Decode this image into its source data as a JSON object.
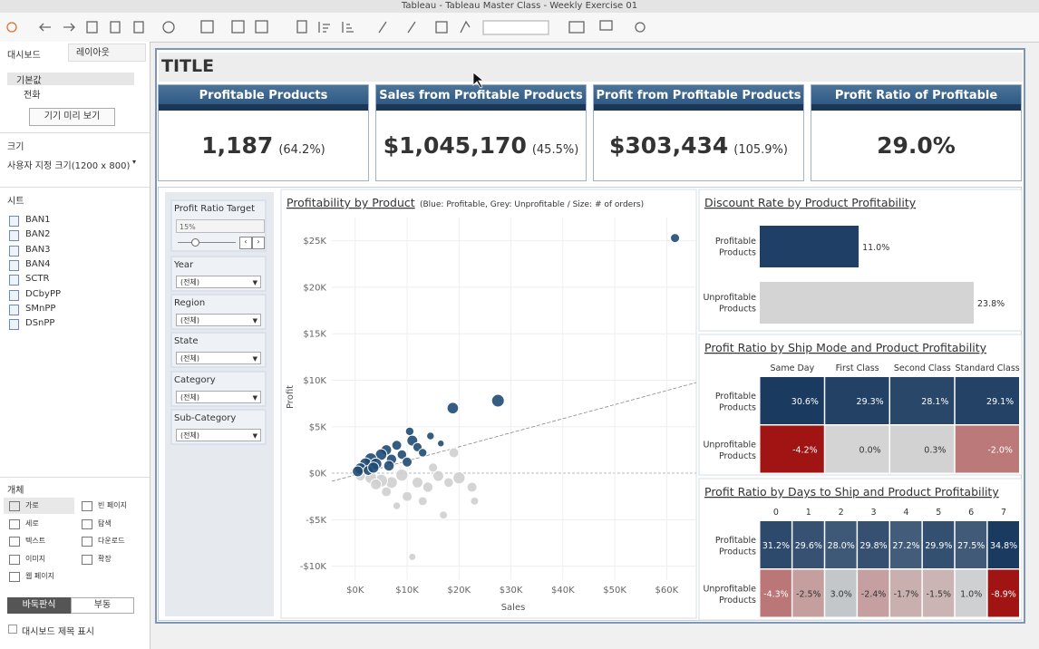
{
  "window_title": "Tableau - Tableau Master Class - Weekly Exercise 01",
  "sidebar": {
    "tabs": [
      "대시보드",
      "레이아웃"
    ],
    "devices": [
      "기본값",
      "전화"
    ],
    "preview_button": "기기 미리 보기",
    "size_heading": "크기",
    "size_value": "사용자 지정 크기(1200 x 800)",
    "sheets_heading": "시트",
    "sheets": [
      "BAN1",
      "BAN2",
      "BAN3",
      "BAN4",
      "SCTR",
      "DCbyPP",
      "SMnPP",
      "DSnPP"
    ],
    "objects_heading": "개체",
    "objects": [
      "가로",
      "빈 페이지",
      "세로",
      "탐색",
      "텍스트",
      "다운로드",
      "이미지",
      "확장",
      "웹 페이지"
    ],
    "layout_buttons": [
      "바둑판식",
      "부동"
    ],
    "show_title": "대시보드 제목 표시"
  },
  "dashboard": {
    "title": "TITLE",
    "kpis": [
      {
        "label": "Profitable Products",
        "value": "1,187",
        "ratio": "(64.2%)"
      },
      {
        "label": "Sales from Profitable Products",
        "value": "$1,045,170",
        "ratio": "(45.5%)"
      },
      {
        "label": "Profit from Profitable Products",
        "value": "$303,434",
        "ratio": "(105.9%)"
      },
      {
        "label": "Profit Ratio of Profitable Products",
        "value": "29.0%"
      }
    ],
    "filters": {
      "target_label": "Profit Ratio Target",
      "target_value": "15%",
      "items": [
        {
          "label": "Year",
          "value": "(전체)"
        },
        {
          "label": "Region",
          "value": "(전체)"
        },
        {
          "label": "State",
          "value": "(전체)"
        },
        {
          "label": "Category",
          "value": "(전체)"
        },
        {
          "label": "Sub-Category",
          "value": "(전체)"
        }
      ]
    }
  },
  "chart_data": [
    {
      "type": "scatter",
      "title": "Profitability by Product",
      "subtitle": "(Blue: Profitable, Grey: Unprofitable / Size: # of orders)",
      "x_label": "Sales",
      "y_label": "Profit",
      "xlim": [
        -4.5,
        65.7
      ],
      "ylim": [
        -11.5,
        27.5
      ],
      "xticks": [
        {
          "value": 0,
          "label": "$0K"
        },
        {
          "value": 10,
          "label": "$10K"
        },
        {
          "value": 20,
          "label": "$20K"
        },
        {
          "value": 30,
          "label": "$30K"
        },
        {
          "value": 40,
          "label": "$40K"
        },
        {
          "value": 50,
          "label": "$50K"
        },
        {
          "value": 60,
          "label": "$60K"
        }
      ],
      "yticks": [
        {
          "value": -10,
          "label": "-$10K"
        },
        {
          "value": -5,
          "label": "-$5K"
        },
        {
          "value": 0,
          "label": "$0K"
        },
        {
          "value": 5,
          "label": "$5K"
        },
        {
          "value": 10,
          "label": "$10K"
        },
        {
          "value": 15,
          "label": "$15K"
        },
        {
          "value": 20,
          "label": "$20K"
        },
        {
          "value": 25,
          "label": "$25K"
        }
      ],
      "grid": true,
      "series": [
        {
          "color": "#1f4a73",
          "x": [
            61.6,
            27.5,
            18.8,
            10.5,
            14.5,
            16.5,
            11.0,
            8.0,
            6.0,
            5.0,
            3.0,
            2.0,
            1.0,
            0.5,
            4.0,
            7.0,
            9.0,
            12.0,
            13.0,
            10.0,
            2.5,
            6.5,
            3.5
          ],
          "values": [
            25.3,
            7.8,
            7.0,
            4.5,
            4.0,
            3.2,
            3.5,
            3.0,
            2.5,
            2.0,
            1.5,
            1.0,
            0.5,
            0.2,
            1.0,
            1.5,
            2.0,
            2.8,
            2.2,
            1.2,
            0.3,
            0.8,
            0.6
          ],
          "sizes": [
            25,
            49,
            40,
            22,
            18,
            14,
            36,
            30,
            34,
            40,
            49,
            45,
            40,
            36,
            42,
            32,
            28,
            26,
            22,
            30,
            30,
            34,
            38
          ]
        },
        {
          "color": "#cfcfcf",
          "x": [
            19.0,
            20.0,
            22.5,
            23.0,
            17.0,
            11.0,
            12.0,
            8.0,
            7.0,
            5.0,
            3.0,
            14.0,
            16.0,
            9.0,
            1.0,
            6.0,
            13.0,
            10.0,
            18.0,
            4.0,
            15.0
          ],
          "values": [
            2.2,
            -0.5,
            -1.5,
            -3.0,
            -4.5,
            -9.0,
            -1.0,
            -3.5,
            -1.0,
            -0.8,
            -0.5,
            -1.5,
            -0.3,
            -0.2,
            -0.3,
            -2.0,
            -3.0,
            -2.5,
            -1.0,
            -1.2,
            0.6
          ],
          "sizes": [
            30,
            45,
            30,
            20,
            20,
            16,
            36,
            18,
            42,
            50,
            42,
            32,
            36,
            45,
            30,
            30,
            25,
            30,
            28,
            36,
            26
          ]
        }
      ]
    },
    {
      "type": "bar",
      "orientation": "horizontal",
      "title": "Discount Rate by Product Profitability",
      "categories": [
        "Profitable Products",
        "Unprofitable Products"
      ],
      "values": [
        11.0,
        23.8
      ],
      "value_labels": [
        "11.0%",
        "23.8%"
      ],
      "colors": [
        "#1f3f66",
        "#d4d4d4"
      ]
    },
    {
      "type": "heatmap",
      "title": "Profit Ratio by Ship Mode and Product Profitability",
      "columns": [
        "Same Day",
        "First Class",
        "Second Class",
        "Standard Class"
      ],
      "rows": [
        "Profitable Products",
        "Unprofitable Products"
      ],
      "values": [
        [
          30.6,
          29.3,
          28.1,
          29.1
        ],
        [
          -4.2,
          0.0,
          0.3,
          -2.0
        ]
      ],
      "value_labels": [
        [
          "30.6%",
          "29.3%",
          "28.1%",
          "29.1%"
        ],
        [
          "-4.2%",
          "0.0%",
          "0.3%",
          "-2.0%"
        ]
      ]
    },
    {
      "type": "heatmap",
      "title": "Profit Ratio by Days to Ship and Product Profitability",
      "columns": [
        0,
        1,
        2,
        3,
        4,
        5,
        6,
        7
      ],
      "rows": [
        "Profitable Products",
        "Unprofitable Products"
      ],
      "values": [
        [
          31.2,
          29.6,
          28.0,
          29.8,
          27.2,
          29.9,
          27.5,
          34.8
        ],
        [
          -4.3,
          -2.5,
          3.0,
          -2.4,
          -1.7,
          -1.5,
          1.0,
          -8.9
        ]
      ],
      "value_labels": [
        [
          "31.2%",
          "29.6%",
          "28.0%",
          "29.8%",
          "27.2%",
          "29.9%",
          "27.5%",
          "34.8%"
        ],
        [
          "-4.3%",
          "-2.5%",
          "3.0%",
          "-2.4%",
          "-1.7%",
          "-1.5%",
          "1.0%",
          "-8.9%"
        ]
      ]
    }
  ]
}
